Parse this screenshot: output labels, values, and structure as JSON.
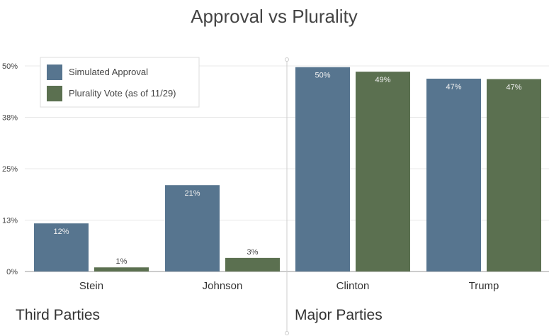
{
  "chart_data": {
    "type": "bar",
    "title": "Approval vs Plurality",
    "categories": [
      "Stein",
      "Johnson",
      "Clinton",
      "Trump"
    ],
    "groups": [
      {
        "label": "Third Parties",
        "categories": [
          "Stein",
          "Johnson"
        ]
      },
      {
        "label": "Major Parties",
        "categories": [
          "Clinton",
          "Trump"
        ]
      }
    ],
    "series": [
      {
        "name": "Simulated Approval",
        "color": "#57758f",
        "values": [
          11.7,
          21,
          49.7,
          46.9
        ],
        "labels": [
          "12%",
          "21%",
          "50%",
          "47%"
        ]
      },
      {
        "name": "Plurality Vote (as of 11/29)",
        "color": "#5b7050",
        "values": [
          1.0,
          3.3,
          48.6,
          46.8
        ],
        "labels": [
          "1%",
          "3%",
          "49%",
          "47%"
        ]
      }
    ],
    "yticks": [
      0,
      12.5,
      25,
      37.5,
      50
    ],
    "ytick_labels": [
      "0%",
      "13%",
      "25%",
      "38%",
      "50%"
    ],
    "ylim": [
      0,
      50
    ],
    "grid": true,
    "legend_position": "top-left"
  }
}
